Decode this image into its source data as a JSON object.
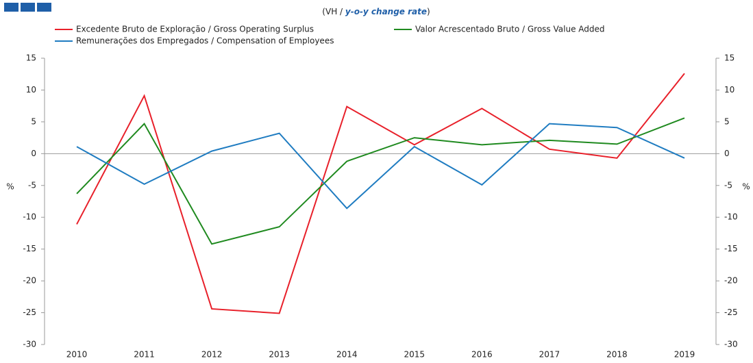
{
  "chart_data": {
    "type": "line",
    "subtitle": [
      "(VH / ",
      "y-o-y change rate",
      ")"
    ],
    "ylabel": "%",
    "y2label": "%",
    "categories": [
      "2010",
      "2011",
      "2012",
      "2013",
      "2014",
      "2015",
      "2016",
      "2017",
      "2018",
      "2019"
    ],
    "series": [
      {
        "name": "Excedente Bruto de Exploração / Gross Operating Surplus",
        "color": "#e8202a",
        "values": [
          -11.1,
          9.1,
          -24.4,
          -25.1,
          7.4,
          1.4,
          7.1,
          0.7,
          -0.7,
          12.6
        ]
      },
      {
        "name": "Valor Acrescentado Bruto / Gross Value Added",
        "color": "#1f8a1f",
        "values": [
          -6.3,
          4.7,
          -14.2,
          -11.5,
          -1.2,
          2.5,
          1.4,
          2.1,
          1.5,
          5.6
        ]
      },
      {
        "name": "Remunerações dos Empregados / Compensation of Employees",
        "color": "#1f7cc1",
        "values": [
          1.1,
          -4.8,
          0.4,
          3.2,
          -8.6,
          1.1,
          -4.9,
          4.7,
          4.1,
          -0.7
        ]
      }
    ],
    "ylim": [
      -30,
      15
    ],
    "yticks": [
      -30,
      -25,
      -20,
      -15,
      -10,
      -5,
      0,
      5,
      10,
      15
    ],
    "y2lim": [
      -30,
      15
    ],
    "y2ticks": [
      -30,
      -25,
      -20,
      -15,
      -10,
      -5,
      0,
      5,
      10,
      15
    ],
    "legend": "top"
  }
}
